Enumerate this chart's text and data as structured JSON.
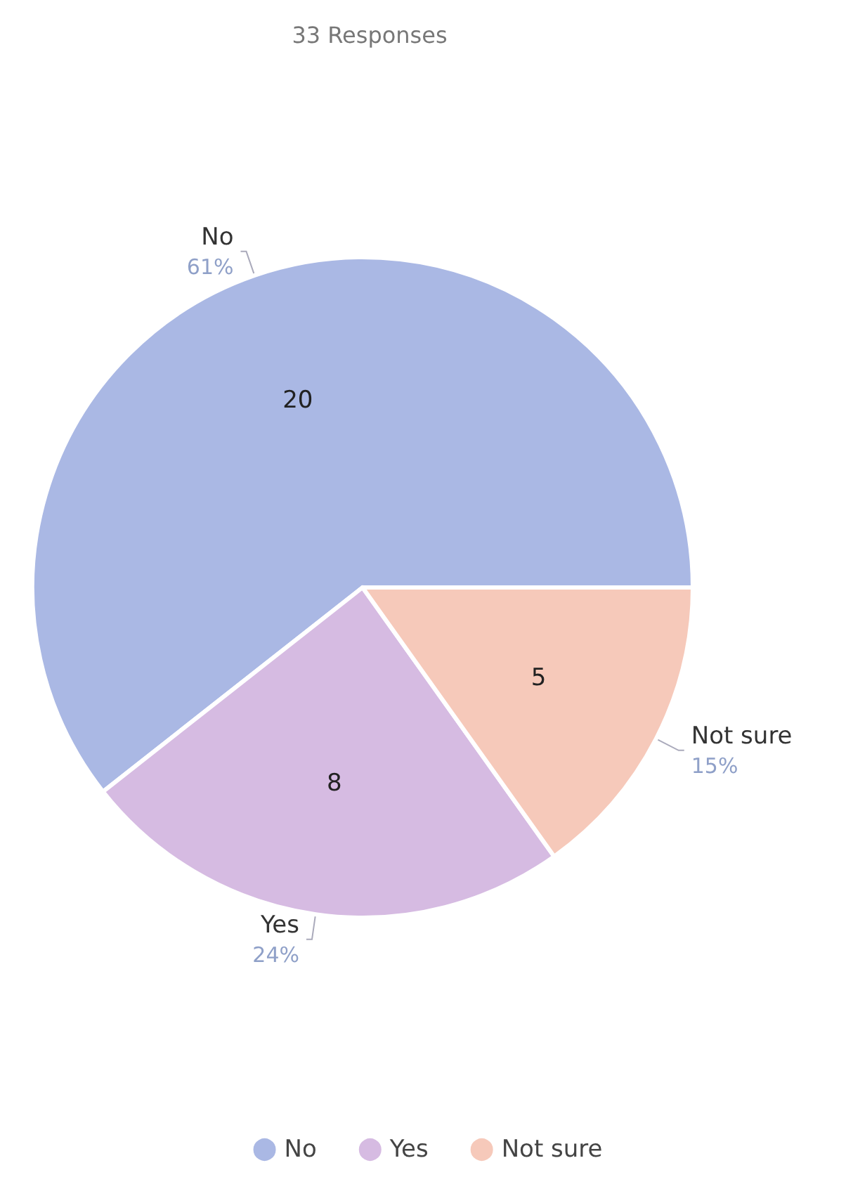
{
  "chart_data": {
    "type": "pie",
    "title": "33 Responses",
    "categories": [
      "No",
      "Yes",
      "Not sure"
    ],
    "values": [
      20,
      8,
      5
    ],
    "colors": [
      "#aab8e4",
      "#d6bbe2",
      "#f6c9ba"
    ],
    "annotations": [
      {
        "text": "61%",
        "x": "No"
      },
      {
        "text": "24%",
        "x": "Yes"
      },
      {
        "text": "15%",
        "x": "Not sure"
      }
    ],
    "data_labels": true,
    "legend": "bottom"
  }
}
